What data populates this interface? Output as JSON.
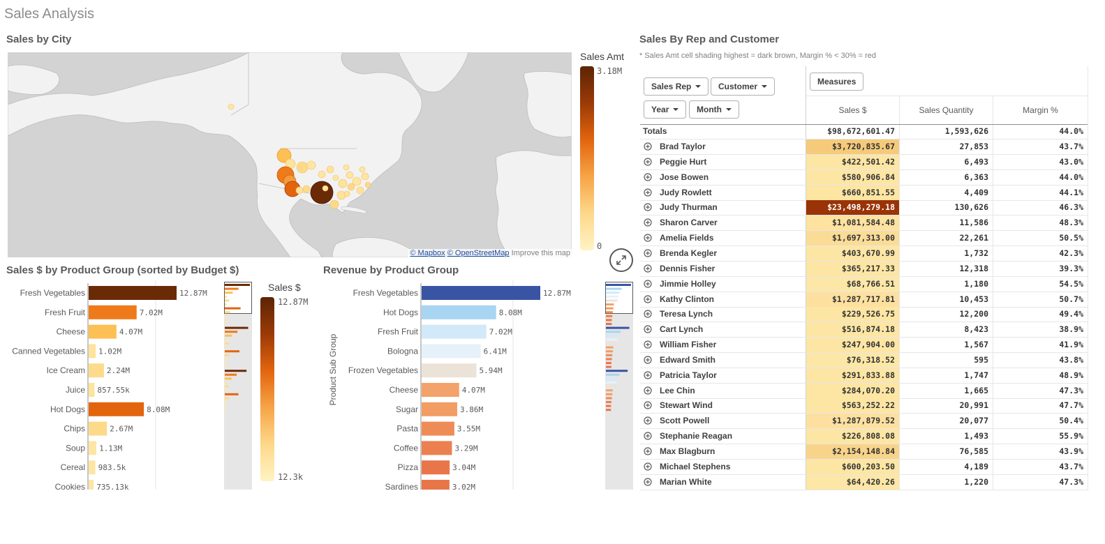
{
  "sheet_title": "Sales Analysis",
  "map_panel": {
    "title": "Sales by City",
    "legend_title": "Sales Amt",
    "legend_max": "3.18M",
    "legend_min": "0",
    "attribution": {
      "mapbox": "© Mapbox",
      "osm": "© OpenStreetMap",
      "improve": "Improve this map"
    }
  },
  "bar_panel_1": {
    "title": "Sales $ by Product Group (sorted by Budget $)",
    "legend_title": "Sales $",
    "legend_max": "12.87M",
    "legend_min": "12.3k"
  },
  "bar_panel_2": {
    "title": "Revenue by Product Group",
    "axis_title": "Product Sub Group"
  },
  "chart_data": [
    {
      "type": "bar",
      "title": "Sales $ by Product Group (sorted by Budget $)",
      "orientation": "horizontal",
      "categories": [
        "Fresh Vegetables",
        "Fresh Fruit",
        "Cheese",
        "Canned Vegetables",
        "Ice Cream",
        "Juice",
        "Hot Dogs",
        "Chips",
        "Soup",
        "Cereal",
        "Cookies"
      ],
      "values": [
        12870000,
        7020000,
        4070000,
        1020000,
        2240000,
        857550,
        8080000,
        2670000,
        1130000,
        983500,
        735130
      ],
      "labels": [
        "12.87M",
        "7.02M",
        "4.07M",
        "1.02M",
        "2.24M",
        "857.55k",
        "8.08M",
        "2.67M",
        "1.13M",
        "983.5k",
        "735.13k"
      ],
      "colors": [
        "#6b2a06",
        "#ef7a1a",
        "#fcc054",
        "#fde39c",
        "#fddb8a",
        "#fde39c",
        "#e2650e",
        "#fdd98a",
        "#fde6a4",
        "#fde6a4",
        "#fde6a4"
      ]
    },
    {
      "type": "bar",
      "title": "Revenue by Product Group",
      "orientation": "horizontal",
      "ylabel": "Product Sub Group",
      "categories": [
        "Fresh Vegetables",
        "Hot Dogs",
        "Fresh Fruit",
        "Bologna",
        "Frozen Vegetables",
        "Cheese",
        "Sugar",
        "Pasta",
        "Coffee",
        "Pizza",
        "Sardines"
      ],
      "values": [
        12870000,
        8080000,
        7020000,
        6410000,
        5940000,
        4070000,
        3860000,
        3550000,
        3290000,
        3040000,
        3020000
      ],
      "labels": [
        "12.87M",
        "8.08M",
        "7.02M",
        "6.41M",
        "5.94M",
        "4.07M",
        "3.86M",
        "3.55M",
        "3.29M",
        "3.04M",
        "3.02M"
      ],
      "colors": [
        "#3a54a4",
        "#a8d5f2",
        "#d2e9f9",
        "#e6f1fa",
        "#ece3d8",
        "#f2a26a",
        "#f29d64",
        "#ee8c57",
        "#ec8050",
        "#e9764a",
        "#e87548"
      ]
    }
  ],
  "table_panel": {
    "title": "Sales By Rep and Customer",
    "note": "* Sales Amt cell shading highest = dark brown, Margin % < 30% = red",
    "buttons": {
      "sales_rep": "Sales Rep",
      "customer": "Customer",
      "year": "Year",
      "month": "Month",
      "measures": "Measures"
    },
    "headers": {
      "sales": "Sales $",
      "qty": "Sales Quantity",
      "margin": "Margin %"
    },
    "totals": {
      "label": "Totals",
      "sales": "$98,672,601.47",
      "qty": "1,593,626",
      "margin": "44.0%"
    },
    "rows": [
      {
        "name": "Brad Taylor",
        "sales": "$3,720,835.67",
        "qty": "27,853",
        "margin": "43.7%",
        "shade": "#f5ca7a"
      },
      {
        "name": "Peggie Hurt",
        "sales": "$422,501.42",
        "qty": "6,493",
        "margin": "43.0%",
        "shade": "#fde6a4"
      },
      {
        "name": "Jose Bowen",
        "sales": "$580,906.84",
        "qty": "6,363",
        "margin": "44.0%",
        "shade": "#fde6a4"
      },
      {
        "name": "Judy Rowlett",
        "sales": "$660,851.55",
        "qty": "4,409",
        "margin": "44.1%",
        "shade": "#fde5a2"
      },
      {
        "name": "Judy Thurman",
        "sales": "$23,498,279.18",
        "qty": "130,626",
        "margin": "46.3%",
        "shade": "#9a3306"
      },
      {
        "name": "Sharon Carver",
        "sales": "$1,081,584.48",
        "qty": "11,586",
        "margin": "48.3%",
        "shade": "#fde2a0"
      },
      {
        "name": "Amelia Fields",
        "sales": "$1,697,313.00",
        "qty": "22,261",
        "margin": "50.5%",
        "shade": "#fbdc96"
      },
      {
        "name": "Brenda Kegler",
        "sales": "$403,670.99",
        "qty": "1,732",
        "margin": "42.3%",
        "shade": "#fde6a4"
      },
      {
        "name": "Dennis Fisher",
        "sales": "$365,217.33",
        "qty": "12,318",
        "margin": "39.3%",
        "shade": "#fde6a4"
      },
      {
        "name": "Jimmie Holley",
        "sales": "$68,766.51",
        "qty": "1,180",
        "margin": "54.5%",
        "shade": "#fde7a6"
      },
      {
        "name": "Kathy Clinton",
        "sales": "$1,287,717.81",
        "qty": "10,453",
        "margin": "50.7%",
        "shade": "#fde0a0"
      },
      {
        "name": "Teresa Lynch",
        "sales": "$229,526.75",
        "qty": "12,200",
        "margin": "49.4%",
        "shade": "#fde6a4"
      },
      {
        "name": "Cart Lynch",
        "sales": "$516,874.18",
        "qty": "8,423",
        "margin": "38.9%",
        "shade": "#fde6a4"
      },
      {
        "name": "William Fisher",
        "sales": "$247,904.00",
        "qty": "1,567",
        "margin": "41.9%",
        "shade": "#fde6a4"
      },
      {
        "name": "Edward Smith",
        "sales": "$76,318.52",
        "qty": "595",
        "margin": "43.8%",
        "shade": "#fde7a6"
      },
      {
        "name": "Patricia Taylor",
        "sales": "$291,833.88",
        "qty": "1,747",
        "margin": "48.9%",
        "shade": "#fde6a4"
      },
      {
        "name": "Lee Chin",
        "sales": "$284,070.20",
        "qty": "1,665",
        "margin": "47.3%",
        "shade": "#fde6a4"
      },
      {
        "name": "Stewart Wind",
        "sales": "$563,252.22",
        "qty": "20,991",
        "margin": "47.7%",
        "shade": "#fde6a4"
      },
      {
        "name": "Scott Powell",
        "sales": "$1,287,879.52",
        "qty": "20,077",
        "margin": "50.4%",
        "shade": "#fde0a0"
      },
      {
        "name": "Stephanie Reagan",
        "sales": "$226,808.08",
        "qty": "1,493",
        "margin": "55.9%",
        "shade": "#fde6a4"
      },
      {
        "name": "Max Blagburn",
        "sales": "$2,154,148.84",
        "qty": "76,585",
        "margin": "43.9%",
        "shade": "#f8d48a"
      },
      {
        "name": "Michael Stephens",
        "sales": "$600,203.50",
        "qty": "4,189",
        "margin": "43.7%",
        "shade": "#fde6a4"
      },
      {
        "name": "Marian White",
        "sales": "$64,420.26",
        "qty": "1,220",
        "margin": "47.3%",
        "shade": "#fde7a6"
      }
    ]
  }
}
